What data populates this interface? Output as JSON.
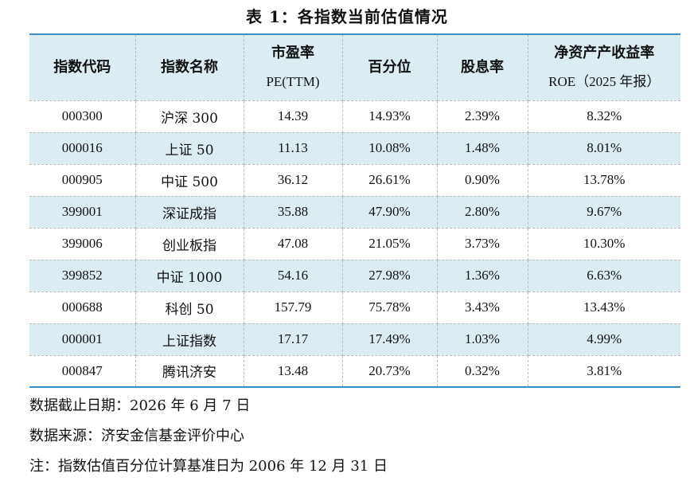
{
  "title": "表 1：各指数当前估值情况",
  "table": {
    "headers": {
      "code": "指数代码",
      "name": "指数名称",
      "pe_line1": "市盈率",
      "pe_line2": "PE(TTM)",
      "percentile": "百分位",
      "dividend": "股息率",
      "roe_line1": "净资产产收益率",
      "roe_line2": "ROE（2025 年报）"
    },
    "rows": [
      {
        "code": "000300",
        "name": "沪深 300",
        "pe": "14.39",
        "percentile": "14.93%",
        "dividend": "2.39%",
        "roe": "8.32%"
      },
      {
        "code": "000016",
        "name": "上证 50",
        "pe": "11.13",
        "percentile": "10.08%",
        "dividend": "1.48%",
        "roe": "8.01%"
      },
      {
        "code": "000905",
        "name": "中证 500",
        "pe": "36.12",
        "percentile": "26.61%",
        "dividend": "0.90%",
        "roe": "13.78%"
      },
      {
        "code": "399001",
        "name": "深证成指",
        "pe": "35.88",
        "percentile": "47.90%",
        "dividend": "2.80%",
        "roe": "9.67%"
      },
      {
        "code": "399006",
        "name": "创业板指",
        "pe": "47.08",
        "percentile": "21.05%",
        "dividend": "3.73%",
        "roe": "10.30%"
      },
      {
        "code": "399852",
        "name": "中证 1000",
        "pe": "54.16",
        "percentile": "27.98%",
        "dividend": "1.36%",
        "roe": "6.63%"
      },
      {
        "code": "000688",
        "name": "科创 50",
        "pe": "157.79",
        "percentile": "75.78%",
        "dividend": "3.43%",
        "roe": "13.43%"
      },
      {
        "code": "000001",
        "name": "上证指数",
        "pe": "17.17",
        "percentile": "17.49%",
        "dividend": "1.03%",
        "roe": "4.99%"
      },
      {
        "code": "000847",
        "name": "腾讯济安",
        "pe": "13.48",
        "percentile": "20.73%",
        "dividend": "0.32%",
        "roe": "3.81%"
      }
    ]
  },
  "notes": {
    "date": "数据截止日期：2026 年 6 月 7 日",
    "source": "数据来源：济安金信基金评价中心",
    "note": "注：指数估值百分位计算基准日为 2006 年 12 月 31 日"
  },
  "colors": {
    "header_bg": "#dcecf3",
    "alt_row_bg": "#dcecf3",
    "rule_blue": "#3b8ec9"
  }
}
